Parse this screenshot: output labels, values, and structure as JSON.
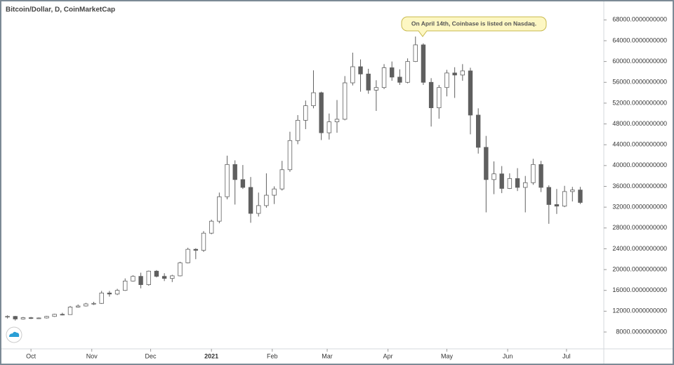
{
  "chart_data": {
    "type": "candlestick",
    "title": "Bitcoin/Dollar, D, CoinMarketCap",
    "annotation": "On April 14th, Coinbase is listed on Nasdaq.",
    "color": "#5f5f5f",
    "open": [
      10900,
      11000,
      10500,
      10750,
      10600,
      10700,
      11000,
      11400,
      11350,
      12800,
      13000,
      13400,
      13500,
      15500,
      15300,
      16000,
      17800,
      18700,
      17100,
      19700,
      18700,
      18300,
      18800,
      21300,
      23900,
      23700,
      27000,
      29300,
      34000,
      40200,
      37300,
      35800,
      30800,
      32300,
      34300,
      35500,
      39200,
      44800,
      48700,
      51500,
      54000,
      46300,
      48400,
      48900,
      55900,
      59000,
      57600,
      54500,
      55000,
      58800,
      57000,
      56000,
      60000,
      63200,
      56000,
      51100,
      55000,
      57800,
      57400,
      58200,
      49700,
      43500,
      37300,
      38400,
      35600,
      37500,
      35800,
      36700,
      40200,
      35800,
      32500,
      32200,
      35000,
      35300
    ],
    "high": [
      11200,
      11100,
      10900,
      10900,
      10800,
      11100,
      11500,
      11700,
      13000,
      13300,
      13600,
      13800,
      15900,
      15900,
      16300,
      18300,
      18900,
      19400,
      19800,
      19900,
      19300,
      19000,
      21500,
      24200,
      24100,
      27400,
      29600,
      34800,
      41900,
      41000,
      40100,
      37800,
      34800,
      38500,
      36000,
      40900,
      46500,
      49700,
      52500,
      58300,
      54200,
      50000,
      52600,
      57200,
      61700,
      60400,
      58600,
      56400,
      59500,
      60000,
      58500,
      60600,
      64800,
      63500,
      56800,
      55500,
      58400,
      58900,
      59500,
      58800,
      51000,
      45700,
      40800,
      39900,
      38500,
      39500,
      38000,
      41300,
      40900,
      36200,
      35500,
      36100,
      35900,
      35900
    ],
    "low": [
      10600,
      10200,
      10400,
      10500,
      10500,
      10600,
      10900,
      11200,
      11300,
      12700,
      12900,
      13200,
      13400,
      14800,
      15100,
      15900,
      17700,
      16400,
      16900,
      18500,
      17800,
      17600,
      18700,
      21200,
      22000,
      23400,
      26800,
      28900,
      33500,
      32500,
      35500,
      29000,
      30200,
      31900,
      32600,
      35200,
      38800,
      44100,
      47000,
      51000,
      44900,
      45000,
      46300,
      48700,
      55400,
      54200,
      53800,
      50500,
      54700,
      56300,
      55500,
      55800,
      59900,
      55500,
      47500,
      49000,
      53300,
      53000,
      56300,
      46000,
      42300,
      31000,
      34500,
      34700,
      35500,
      35100,
      31000,
      36300,
      34900,
      28800,
      30700,
      32000,
      33100,
      32600
    ],
    "close": [
      11000,
      10500,
      10750,
      10600,
      10700,
      11000,
      11400,
      11350,
      12800,
      13000,
      13400,
      13500,
      15500,
      15300,
      16000,
      17800,
      18700,
      17100,
      19700,
      18700,
      18300,
      18800,
      21300,
      23900,
      23700,
      27000,
      29300,
      34000,
      40200,
      37300,
      35800,
      30800,
      32300,
      34300,
      35500,
      39200,
      44800,
      48700,
      51500,
      54000,
      46300,
      48400,
      48900,
      55900,
      59000,
      57600,
      54500,
      55000,
      58800,
      57000,
      56000,
      60000,
      63200,
      56000,
      51100,
      55000,
      57800,
      57400,
      58200,
      49700,
      43500,
      37300,
      38400,
      35600,
      37500,
      35800,
      36700,
      40200,
      35800,
      32500,
      32200,
      35000,
      35300,
      32900
    ],
    "xlim": [
      -0.5,
      76
    ],
    "xticks": [
      {
        "value": 3,
        "label": "Oct"
      },
      {
        "value": 10.75,
        "label": "Nov"
      },
      {
        "value": 18.25,
        "label": "Dec"
      },
      {
        "value": 26,
        "label": "2021"
      },
      {
        "value": 33.75,
        "label": "Feb"
      },
      {
        "value": 40.75,
        "label": "Mar"
      },
      {
        "value": 48.5,
        "label": "Apr"
      },
      {
        "value": 56,
        "label": "May"
      },
      {
        "value": 63.75,
        "label": "Jun"
      },
      {
        "value": 71.25,
        "label": "Jul"
      }
    ],
    "ylim": [
      4760,
      71150
    ],
    "yticks": [
      {
        "value": 8000,
        "label": "8000.0000000000"
      },
      {
        "value": 12000,
        "label": "12000.0000000000"
      },
      {
        "value": 16000,
        "label": "16000.0000000000"
      },
      {
        "value": 20000,
        "label": "20000.0000000000"
      },
      {
        "value": 24000,
        "label": "24000.0000000000"
      },
      {
        "value": 28000,
        "label": "28000.0000000000"
      },
      {
        "value": 32000,
        "label": "32000.0000000000"
      },
      {
        "value": 36000,
        "label": "36000.0000000000"
      },
      {
        "value": 40000,
        "label": "40000.0000000000"
      },
      {
        "value": 44000,
        "label": "44000.0000000000"
      },
      {
        "value": 48000,
        "label": "48000.0000000000"
      },
      {
        "value": 52000,
        "label": "52000.0000000000"
      },
      {
        "value": 56000,
        "label": "56000.0000000000"
      },
      {
        "value": 60000,
        "label": "60000.0000000000"
      },
      {
        "value": 64000,
        "label": "64000.0000000000"
      },
      {
        "value": 68000,
        "label": "68000.0000000000"
      }
    ]
  }
}
